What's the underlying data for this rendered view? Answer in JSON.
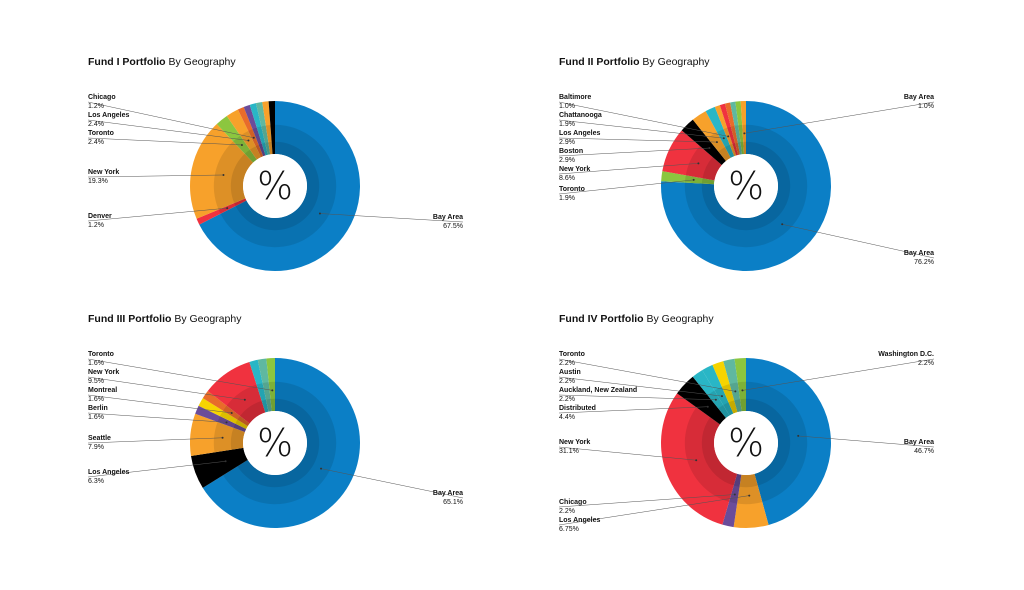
{
  "colors": {
    "Bay Area": "#0b7fc6",
    "New York": "#f0323f",
    "Los Angeles": "#f7a12b",
    "Toronto": "#8cc63f",
    "Chicago": "#e86c2a",
    "Denver": "#f0323f",
    "Baltimore": "#f7a12b",
    "Chattanooga": "#29b6c6",
    "Boston": "#000000",
    "Seattle": "#f7a12b",
    "Berlin": "#f7a12b",
    "Montreal": "#6b4c9a",
    "Distributed": "#000000",
    "Auckland, New Zealand": "#f6d400",
    "Austin": "#29b6c6",
    "Washington D.C.": "#8cc63f",
    "other": "#5fb8a0"
  },
  "center_symbol": "%",
  "chart_data": [
    {
      "type": "pie",
      "title_bold": "Fund I Portfolio",
      "title_rest": "By Geography",
      "slices": [
        {
          "name": "Bay Area",
          "value": 67.5,
          "label": "67.5%",
          "color": "#0b7fc6"
        },
        {
          "name": "Denver",
          "value": 1.2,
          "label": "1.2%",
          "color": "#f0323f"
        },
        {
          "name": "New York",
          "value": 19.3,
          "label": "19.3%",
          "color": "#f7a12b"
        },
        {
          "name": "Toronto",
          "value": 2.4,
          "label": "2.4%",
          "color": "#8cc63f"
        },
        {
          "name": "Los Angeles",
          "value": 2.4,
          "label": "2.4%",
          "color": "#f7a12b"
        },
        {
          "name": "Chicago",
          "value": 1.2,
          "label": "1.2%",
          "color": "#e86c2a"
        },
        {
          "name": "",
          "value": 1.2,
          "color": "#6b4c9a"
        },
        {
          "name": "",
          "value": 1.2,
          "color": "#29b6c6"
        },
        {
          "name": "",
          "value": 1.2,
          "color": "#5fb8a0"
        },
        {
          "name": "",
          "value": 1.2,
          "color": "#f7a12b"
        },
        {
          "name": "",
          "value": 1.2,
          "color": "#000000"
        }
      ]
    },
    {
      "type": "pie",
      "title_bold": "Fund II Portfolio",
      "title_rest": "By Geography",
      "slices": [
        {
          "name": "Bay Area",
          "value": 76.2,
          "label": "76.2%",
          "color": "#0b7fc6"
        },
        {
          "name": "Toronto",
          "value": 1.9,
          "label": "1.9%",
          "color": "#8cc63f"
        },
        {
          "name": "New York",
          "value": 8.6,
          "label": "8.6%",
          "color": "#f0323f"
        },
        {
          "name": "Boston",
          "value": 2.9,
          "label": "2.9%",
          "color": "#000000"
        },
        {
          "name": "Los Angeles",
          "value": 2.9,
          "label": "2.9%",
          "color": "#f7a12b"
        },
        {
          "name": "Chattanooga",
          "value": 1.9,
          "label": "1.9%",
          "color": "#29b6c6"
        },
        {
          "name": "Baltimore",
          "value": 1.0,
          "label": "1.0%",
          "color": "#f7a12b"
        },
        {
          "name": "",
          "value": 1.0,
          "color": "#f0323f"
        },
        {
          "name": "",
          "value": 1.0,
          "color": "#e86c2a"
        },
        {
          "name": "",
          "value": 1.0,
          "color": "#5fb8a0"
        },
        {
          "name": "",
          "value": 1.0,
          "color": "#8cc63f"
        },
        {
          "name": "Bay Area",
          "value": 1.0,
          "label": "1.0%",
          "color": "#f7a12b"
        }
      ]
    },
    {
      "type": "pie",
      "title_bold": "Fund III Portfolio",
      "title_rest": "By Geography",
      "slices": [
        {
          "name": "Bay Area",
          "value": 65.1,
          "label": "65.1%",
          "color": "#0b7fc6"
        },
        {
          "name": "Los Angeles",
          "value": 6.3,
          "label": "6.3%",
          "color": "#000000"
        },
        {
          "name": "Seattle",
          "value": 7.9,
          "label": "7.9%",
          "color": "#f7a12b"
        },
        {
          "name": "Berlin",
          "value": 1.6,
          "label": "1.6%",
          "color": "#6b4c9a"
        },
        {
          "name": "",
          "value": 1.6,
          "color": "#f6d400"
        },
        {
          "name": "Montreal",
          "value": 1.6,
          "label": "1.6%",
          "color": "#e86c2a"
        },
        {
          "name": "New York",
          "value": 9.5,
          "label": "9.5%",
          "color": "#f0323f"
        },
        {
          "name": "",
          "value": 1.6,
          "color": "#29b6c6"
        },
        {
          "name": "",
          "value": 1.6,
          "color": "#5fb8a0"
        },
        {
          "name": "Toronto",
          "value": 1.6,
          "label": "1.6%",
          "color": "#8cc63f"
        }
      ]
    },
    {
      "type": "pie",
      "title_bold": "Fund IV Portfolio",
      "title_rest": "By Geography",
      "slices": [
        {
          "name": "Bay Area",
          "value": 46.7,
          "label": "46.7%",
          "color": "#0b7fc6"
        },
        {
          "name": "Los Angeles",
          "value": 6.75,
          "label": "6.75%",
          "color": "#f7a12b"
        },
        {
          "name": "Chicago",
          "value": 2.2,
          "label": "2.2%",
          "color": "#6b4c9a"
        },
        {
          "name": "New York",
          "value": 31.1,
          "label": "31.1%",
          "color": "#f0323f"
        },
        {
          "name": "Distributed",
          "value": 4.4,
          "label": "4.4%",
          "color": "#000000"
        },
        {
          "name": "Auckland, New Zealand",
          "value": 2.2,
          "label": "2.2%",
          "color": "#29b6c6"
        },
        {
          "name": "Austin",
          "value": 2.2,
          "label": "2.2%",
          "color": "#29b6c6"
        },
        {
          "name": "",
          "value": 2.2,
          "color": "#f6d400"
        },
        {
          "name": "Toronto",
          "value": 2.2,
          "label": "2.2%",
          "color": "#5fb8a0"
        },
        {
          "name": "Washington D.C.",
          "value": 2.2,
          "label": "2.2%",
          "color": "#8cc63f"
        }
      ]
    }
  ]
}
